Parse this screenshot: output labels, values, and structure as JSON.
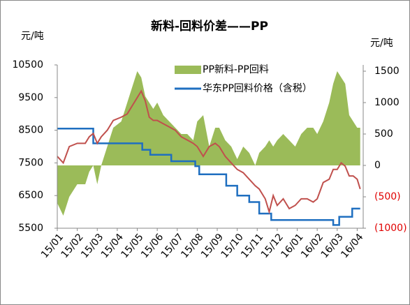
{
  "chart_data": {
    "type": "combo",
    "title": "新料-回料价差——PP",
    "y_label": "元/吨",
    "y2_label": "元/吨",
    "xlim": [
      0,
      15.3
    ],
    "xticks": [
      {
        "value": 0,
        "label": "15/01"
      },
      {
        "value": 1,
        "label": "15/02"
      },
      {
        "value": 2,
        "label": "15/03"
      },
      {
        "value": 3,
        "label": "15/04"
      },
      {
        "value": 4,
        "label": "15/05"
      },
      {
        "value": 5,
        "label": "15/06"
      },
      {
        "value": 6,
        "label": "15/07"
      },
      {
        "value": 7,
        "label": "15/08"
      },
      {
        "value": 8,
        "label": "15/09"
      },
      {
        "value": 9,
        "label": "15/10"
      },
      {
        "value": 10,
        "label": "15/11"
      },
      {
        "value": 11,
        "label": "15/12"
      },
      {
        "value": 12,
        "label": "16/01"
      },
      {
        "value": 13,
        "label": "16/02"
      },
      {
        "value": 14,
        "label": "16/03"
      },
      {
        "value": 15,
        "label": "16/04"
      }
    ],
    "ylim": [
      5500,
      10500
    ],
    "yticks": [
      5500,
      6500,
      7500,
      8500,
      9500,
      10500
    ],
    "y2lim": [
      -1000,
      1600
    ],
    "y2ticks": [
      {
        "value": -1000,
        "label": "(1000)"
      },
      {
        "value": -500,
        "label": "(500)"
      },
      0,
      500,
      1000,
      1500
    ],
    "y2_negative_color": "#e00000",
    "series": [
      {
        "name": "PP新料-PP回料",
        "kind": "area",
        "axis": "y2",
        "color": "#9bbb59",
        "x": [
          0,
          0.3,
          0.6,
          1.0,
          1.4,
          1.6,
          1.8,
          2.0,
          2.2,
          2.5,
          2.8,
          3.2,
          3.5,
          3.8,
          4.0,
          4.2,
          4.4,
          4.6,
          4.8,
          5.0,
          5.3,
          5.6,
          5.9,
          6.2,
          6.5,
          6.8,
          7.0,
          7.3,
          7.6,
          7.9,
          8.1,
          8.4,
          8.7,
          9.0,
          9.3,
          9.6,
          9.9,
          10.1,
          10.4,
          10.6,
          10.8,
          11.0,
          11.3,
          11.6,
          11.9,
          12.2,
          12.5,
          12.8,
          13.0,
          13.3,
          13.6,
          13.8,
          14.0,
          14.2,
          14.4,
          14.6,
          14.8,
          15.0,
          15.15
        ],
        "values": [
          -600,
          -800,
          -500,
          -300,
          -300,
          -100,
          0,
          -300,
          0,
          300,
          600,
          700,
          1000,
          1300,
          1500,
          1400,
          1100,
          1000,
          900,
          1000,
          800,
          700,
          600,
          500,
          500,
          400,
          700,
          800,
          300,
          600,
          600,
          400,
          300,
          100,
          300,
          200,
          0,
          200,
          300,
          400,
          300,
          400,
          500,
          400,
          300,
          500,
          600,
          600,
          500,
          700,
          1000,
          1300,
          1500,
          1400,
          1300,
          800,
          700,
          600,
          600
        ]
      },
      {
        "name": "华东PP回料价格（含税）",
        "kind": "step",
        "color": "#1f6fc0",
        "x": [
          0,
          1.8,
          4.25,
          4.65,
          5.7,
          6.9,
          7.1,
          8.45,
          9.0,
          9.6,
          10.1,
          10.7,
          13.8,
          14.1,
          14.75,
          15.15
        ],
        "values": [
          8550,
          8100,
          7900,
          7750,
          7550,
          7400,
          7150,
          6800,
          6500,
          6300,
          5950,
          5750,
          5600,
          5850,
          6100,
          6100
        ]
      },
      {
        "kind": "line",
        "color": "#c0504d",
        "x": [
          0,
          0.3,
          0.6,
          1.0,
          1.4,
          1.6,
          1.8,
          2.0,
          2.2,
          2.5,
          2.8,
          3.2,
          3.5,
          3.8,
          4.0,
          4.2,
          4.4,
          4.6,
          4.8,
          5.0,
          5.3,
          5.6,
          5.9,
          6.2,
          6.5,
          6.8,
          7.0,
          7.3,
          7.6,
          7.9,
          8.1,
          8.4,
          8.7,
          9.0,
          9.3,
          9.6,
          9.9,
          10.1,
          10.4,
          10.6,
          10.8,
          11.0,
          11.3,
          11.6,
          11.9,
          12.2,
          12.5,
          12.8,
          13.0,
          13.3,
          13.6,
          13.8,
          14.0,
          14.2,
          14.4,
          14.6,
          14.8,
          15.0,
          15.15
        ],
        "values": [
          7700,
          7500,
          8000,
          8100,
          8100,
          8300,
          8400,
          8100,
          8300,
          8500,
          8800,
          8900,
          9000,
          9300,
          9500,
          9700,
          9400,
          8900,
          8800,
          8800,
          8700,
          8600,
          8500,
          8300,
          8200,
          8100,
          8000,
          7700,
          8000,
          8100,
          8000,
          7700,
          7500,
          7300,
          7200,
          7000,
          6800,
          6700,
          6400,
          6000,
          6500,
          6200,
          6400,
          6100,
          6200,
          6400,
          6400,
          6300,
          6400,
          6900,
          7000,
          7300,
          7300,
          7500,
          7400,
          7100,
          7100,
          7000,
          6700
        ]
      }
    ]
  }
}
